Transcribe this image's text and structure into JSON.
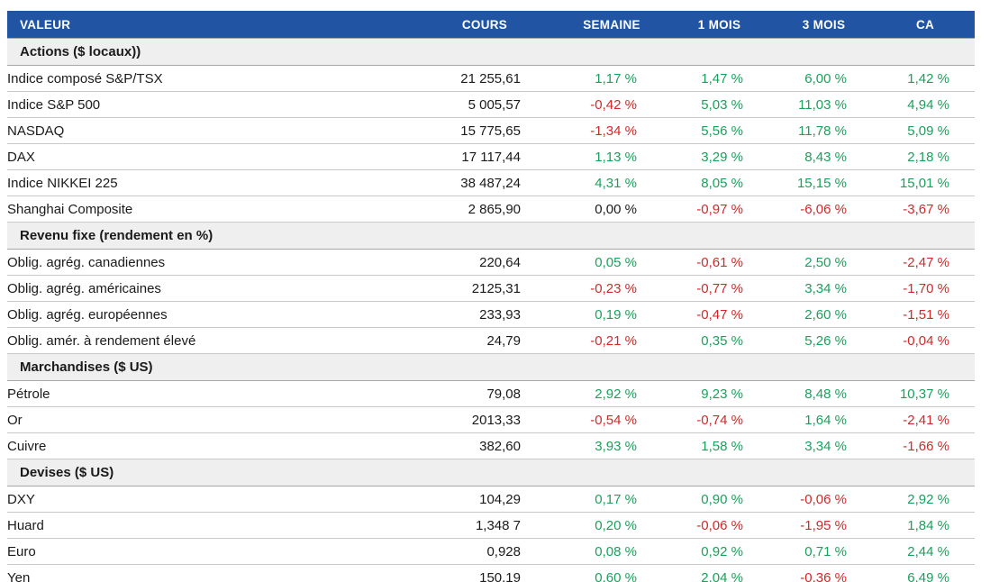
{
  "colors": {
    "header_bg": "#2155A4",
    "header_text": "#FFFFFF",
    "section_bg": "#EFEFEF",
    "positive": "#1BA05C",
    "negative": "#CE2A2A",
    "neutral_text": "#1A1A1A"
  },
  "chart_data": {
    "type": "table",
    "columns": [
      "VALEUR",
      "COURS",
      "SEMAINE",
      "1 MOIS",
      "3 MOIS",
      "CA"
    ],
    "sections": [
      {
        "label": "Actions ($ locaux))",
        "rows": [
          {
            "label": "Indice composé S&P/TSX",
            "cours": "21 255,61",
            "pcts": [
              {
                "text": "1,17 %",
                "tone": "pos"
              },
              {
                "text": "1,47 %",
                "tone": "pos"
              },
              {
                "text": "6,00 %",
                "tone": "pos"
              },
              {
                "text": "1,42 %",
                "tone": "pos"
              }
            ]
          },
          {
            "label": "Indice S&P 500",
            "cours": "5 005,57",
            "pcts": [
              {
                "text": "-0,42 %",
                "tone": "neg"
              },
              {
                "text": "5,03 %",
                "tone": "pos"
              },
              {
                "text": "11,03 %",
                "tone": "pos"
              },
              {
                "text": "4,94 %",
                "tone": "pos"
              }
            ]
          },
          {
            "label": "NASDAQ",
            "cours": "15 775,65",
            "pcts": [
              {
                "text": "-1,34 %",
                "tone": "neg"
              },
              {
                "text": "5,56 %",
                "tone": "pos"
              },
              {
                "text": "11,78 %",
                "tone": "pos"
              },
              {
                "text": "5,09 %",
                "tone": "pos"
              }
            ]
          },
          {
            "label": "DAX",
            "cours": "17 117,44",
            "pcts": [
              {
                "text": "1,13 %",
                "tone": "pos"
              },
              {
                "text": "3,29 %",
                "tone": "pos"
              },
              {
                "text": "8,43 %",
                "tone": "pos"
              },
              {
                "text": "2,18 %",
                "tone": "pos"
              }
            ]
          },
          {
            "label": "Indice NIKKEI 225",
            "cours": "38 487,24",
            "pcts": [
              {
                "text": "4,31 %",
                "tone": "pos"
              },
              {
                "text": "8,05 %",
                "tone": "pos"
              },
              {
                "text": "15,15 %",
                "tone": "pos"
              },
              {
                "text": "15,01 %",
                "tone": "pos"
              }
            ]
          },
          {
            "label": "Shanghai Composite",
            "cours": "2 865,90",
            "pcts": [
              {
                "text": "0,00 %",
                "tone": "neutral"
              },
              {
                "text": "-0,97 %",
                "tone": "neg"
              },
              {
                "text": "-6,06 %",
                "tone": "neg"
              },
              {
                "text": "-3,67 %",
                "tone": "neg"
              }
            ]
          }
        ]
      },
      {
        "label": "Revenu fixe (rendement en %)",
        "rows": [
          {
            "label": "Oblig. agrég. canadiennes",
            "cours": "220,64",
            "pcts": [
              {
                "text": "0,05 %",
                "tone": "pos"
              },
              {
                "text": "-0,61 %",
                "tone": "neg"
              },
              {
                "text": "2,50 %",
                "tone": "pos"
              },
              {
                "text": "-2,47 %",
                "tone": "neg"
              }
            ]
          },
          {
            "label": "Oblig. agrég. américaines",
            "cours": "2125,31",
            "pcts": [
              {
                "text": "-0,23 %",
                "tone": "neg"
              },
              {
                "text": "-0,77 %",
                "tone": "neg"
              },
              {
                "text": "3,34 %",
                "tone": "pos"
              },
              {
                "text": "-1,70 %",
                "tone": "neg"
              }
            ]
          },
          {
            "label": "Oblig. agrég. européennes",
            "cours": "233,93",
            "pcts": [
              {
                "text": "0,19 %",
                "tone": "pos"
              },
              {
                "text": "-0,47 %",
                "tone": "neg"
              },
              {
                "text": "2,60 %",
                "tone": "pos"
              },
              {
                "text": "-1,51 %",
                "tone": "neg"
              }
            ]
          },
          {
            "label": "Oblig. amér. à rendement élevé",
            "cours": "24,79",
            "pcts": [
              {
                "text": "-0,21 %",
                "tone": "neg"
              },
              {
                "text": "0,35 %",
                "tone": "pos"
              },
              {
                "text": "5,26 %",
                "tone": "pos"
              },
              {
                "text": "-0,04 %",
                "tone": "neg"
              }
            ]
          }
        ]
      },
      {
        "label": "Marchandises ($ US)",
        "rows": [
          {
            "label": "Pétrole",
            "cours": "79,08",
            "pcts": [
              {
                "text": "2,92 %",
                "tone": "pos"
              },
              {
                "text": "9,23 %",
                "tone": "pos"
              },
              {
                "text": "8,48 %",
                "tone": "pos"
              },
              {
                "text": "10,37 %",
                "tone": "pos"
              }
            ]
          },
          {
            "label": "Or",
            "cours": "2013,33",
            "pcts": [
              {
                "text": "-0,54 %",
                "tone": "neg"
              },
              {
                "text": "-0,74 %",
                "tone": "neg"
              },
              {
                "text": "1,64 %",
                "tone": "pos"
              },
              {
                "text": "-2,41 %",
                "tone": "neg"
              }
            ]
          },
          {
            "label": "Cuivre",
            "cours": "382,60",
            "pcts": [
              {
                "text": "3,93 %",
                "tone": "pos"
              },
              {
                "text": "1,58 %",
                "tone": "pos"
              },
              {
                "text": "3,34 %",
                "tone": "pos"
              },
              {
                "text": "-1,66 %",
                "tone": "neg"
              }
            ]
          }
        ]
      },
      {
        "label": "Devises ($ US)",
        "rows": [
          {
            "label": "DXY",
            "cours": "104,29",
            "pcts": [
              {
                "text": "0,17 %",
                "tone": "pos"
              },
              {
                "text": "0,90 %",
                "tone": "pos"
              },
              {
                "text": "-0,06 %",
                "tone": "neg"
              },
              {
                "text": "2,92 %",
                "tone": "pos"
              }
            ]
          },
          {
            "label": "Huard",
            "cours": "1,348 7",
            "pcts": [
              {
                "text": "0,20 %",
                "tone": "pos"
              },
              {
                "text": "-0,06 %",
                "tone": "neg"
              },
              {
                "text": "-1,95 %",
                "tone": "neg"
              },
              {
                "text": "1,84 %",
                "tone": "pos"
              }
            ]
          },
          {
            "label": "Euro",
            "cours": "0,928",
            "pcts": [
              {
                "text": "0,08 %",
                "tone": "pos"
              },
              {
                "text": "0,92 %",
                "tone": "pos"
              },
              {
                "text": "0,71 %",
                "tone": "pos"
              },
              {
                "text": "2,44 %",
                "tone": "pos"
              }
            ]
          },
          {
            "label": "Yen",
            "cours": "150,19",
            "pcts": [
              {
                "text": "0,60 %",
                "tone": "pos"
              },
              {
                "text": "2,04 %",
                "tone": "pos"
              },
              {
                "text": "-0,36 %",
                "tone": "neg"
              },
              {
                "text": "6,49 %",
                "tone": "pos"
              }
            ]
          }
        ]
      }
    ]
  }
}
